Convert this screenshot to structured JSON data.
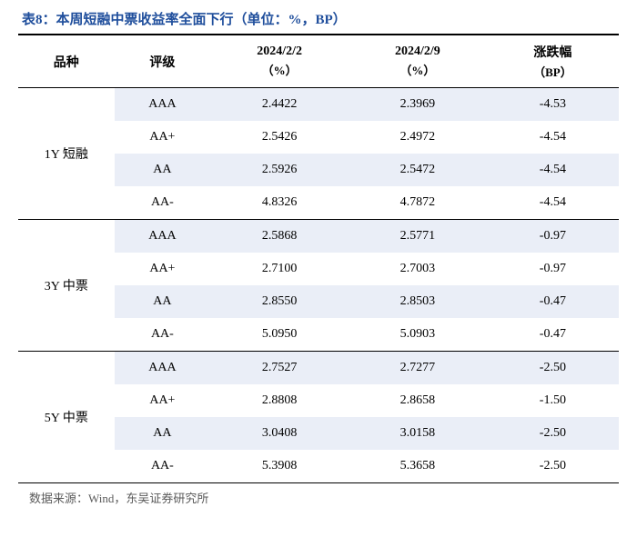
{
  "title": "表8：本周短融中票收益率全面下行（单位：%，BP）",
  "columns": {
    "c0": "品种",
    "c1": "评级",
    "c2_top": "2024/2/2",
    "c2_sub": "（%）",
    "c3_top": "2024/2/9",
    "c3_sub": "（%）",
    "c4_top": "涨跌幅",
    "c4_sub": "（BP）"
  },
  "groups": [
    {
      "name": "1Y 短融",
      "rows": [
        {
          "rating": "AAA",
          "v1": "2.4422",
          "v2": "2.3969",
          "chg": "-4.53"
        },
        {
          "rating": "AA+",
          "v1": "2.5426",
          "v2": "2.4972",
          "chg": "-4.54"
        },
        {
          "rating": "AA",
          "v1": "2.5926",
          "v2": "2.5472",
          "chg": "-4.54"
        },
        {
          "rating": "AA-",
          "v1": "4.8326",
          "v2": "4.7872",
          "chg": "-4.54"
        }
      ]
    },
    {
      "name": "3Y 中票",
      "rows": [
        {
          "rating": "AAA",
          "v1": "2.5868",
          "v2": "2.5771",
          "chg": "-0.97"
        },
        {
          "rating": "AA+",
          "v1": "2.7100",
          "v2": "2.7003",
          "chg": "-0.97"
        },
        {
          "rating": "AA",
          "v1": "2.8550",
          "v2": "2.8503",
          "chg": "-0.47"
        },
        {
          "rating": "AA-",
          "v1": "5.0950",
          "v2": "5.0903",
          "chg": "-0.47"
        }
      ]
    },
    {
      "name": "5Y 中票",
      "rows": [
        {
          "rating": "AAA",
          "v1": "2.7527",
          "v2": "2.7277",
          "chg": "-2.50"
        },
        {
          "rating": "AA+",
          "v1": "2.8808",
          "v2": "2.8658",
          "chg": "-1.50"
        },
        {
          "rating": "AA",
          "v1": "3.0408",
          "v2": "3.0158",
          "chg": "-2.50"
        },
        {
          "rating": "AA-",
          "v1": "5.3908",
          "v2": "5.3658",
          "chg": "-2.50"
        }
      ]
    }
  ],
  "source": "数据来源：Wind，东吴证券研究所",
  "style": {
    "title_color": "#1f4e9c",
    "stripe_color": "#eaeef7",
    "border_color": "#000000",
    "background": "#ffffff",
    "source_color": "#5a5a5a",
    "col_widths_pct": [
      16,
      16,
      23,
      23,
      22
    ]
  }
}
